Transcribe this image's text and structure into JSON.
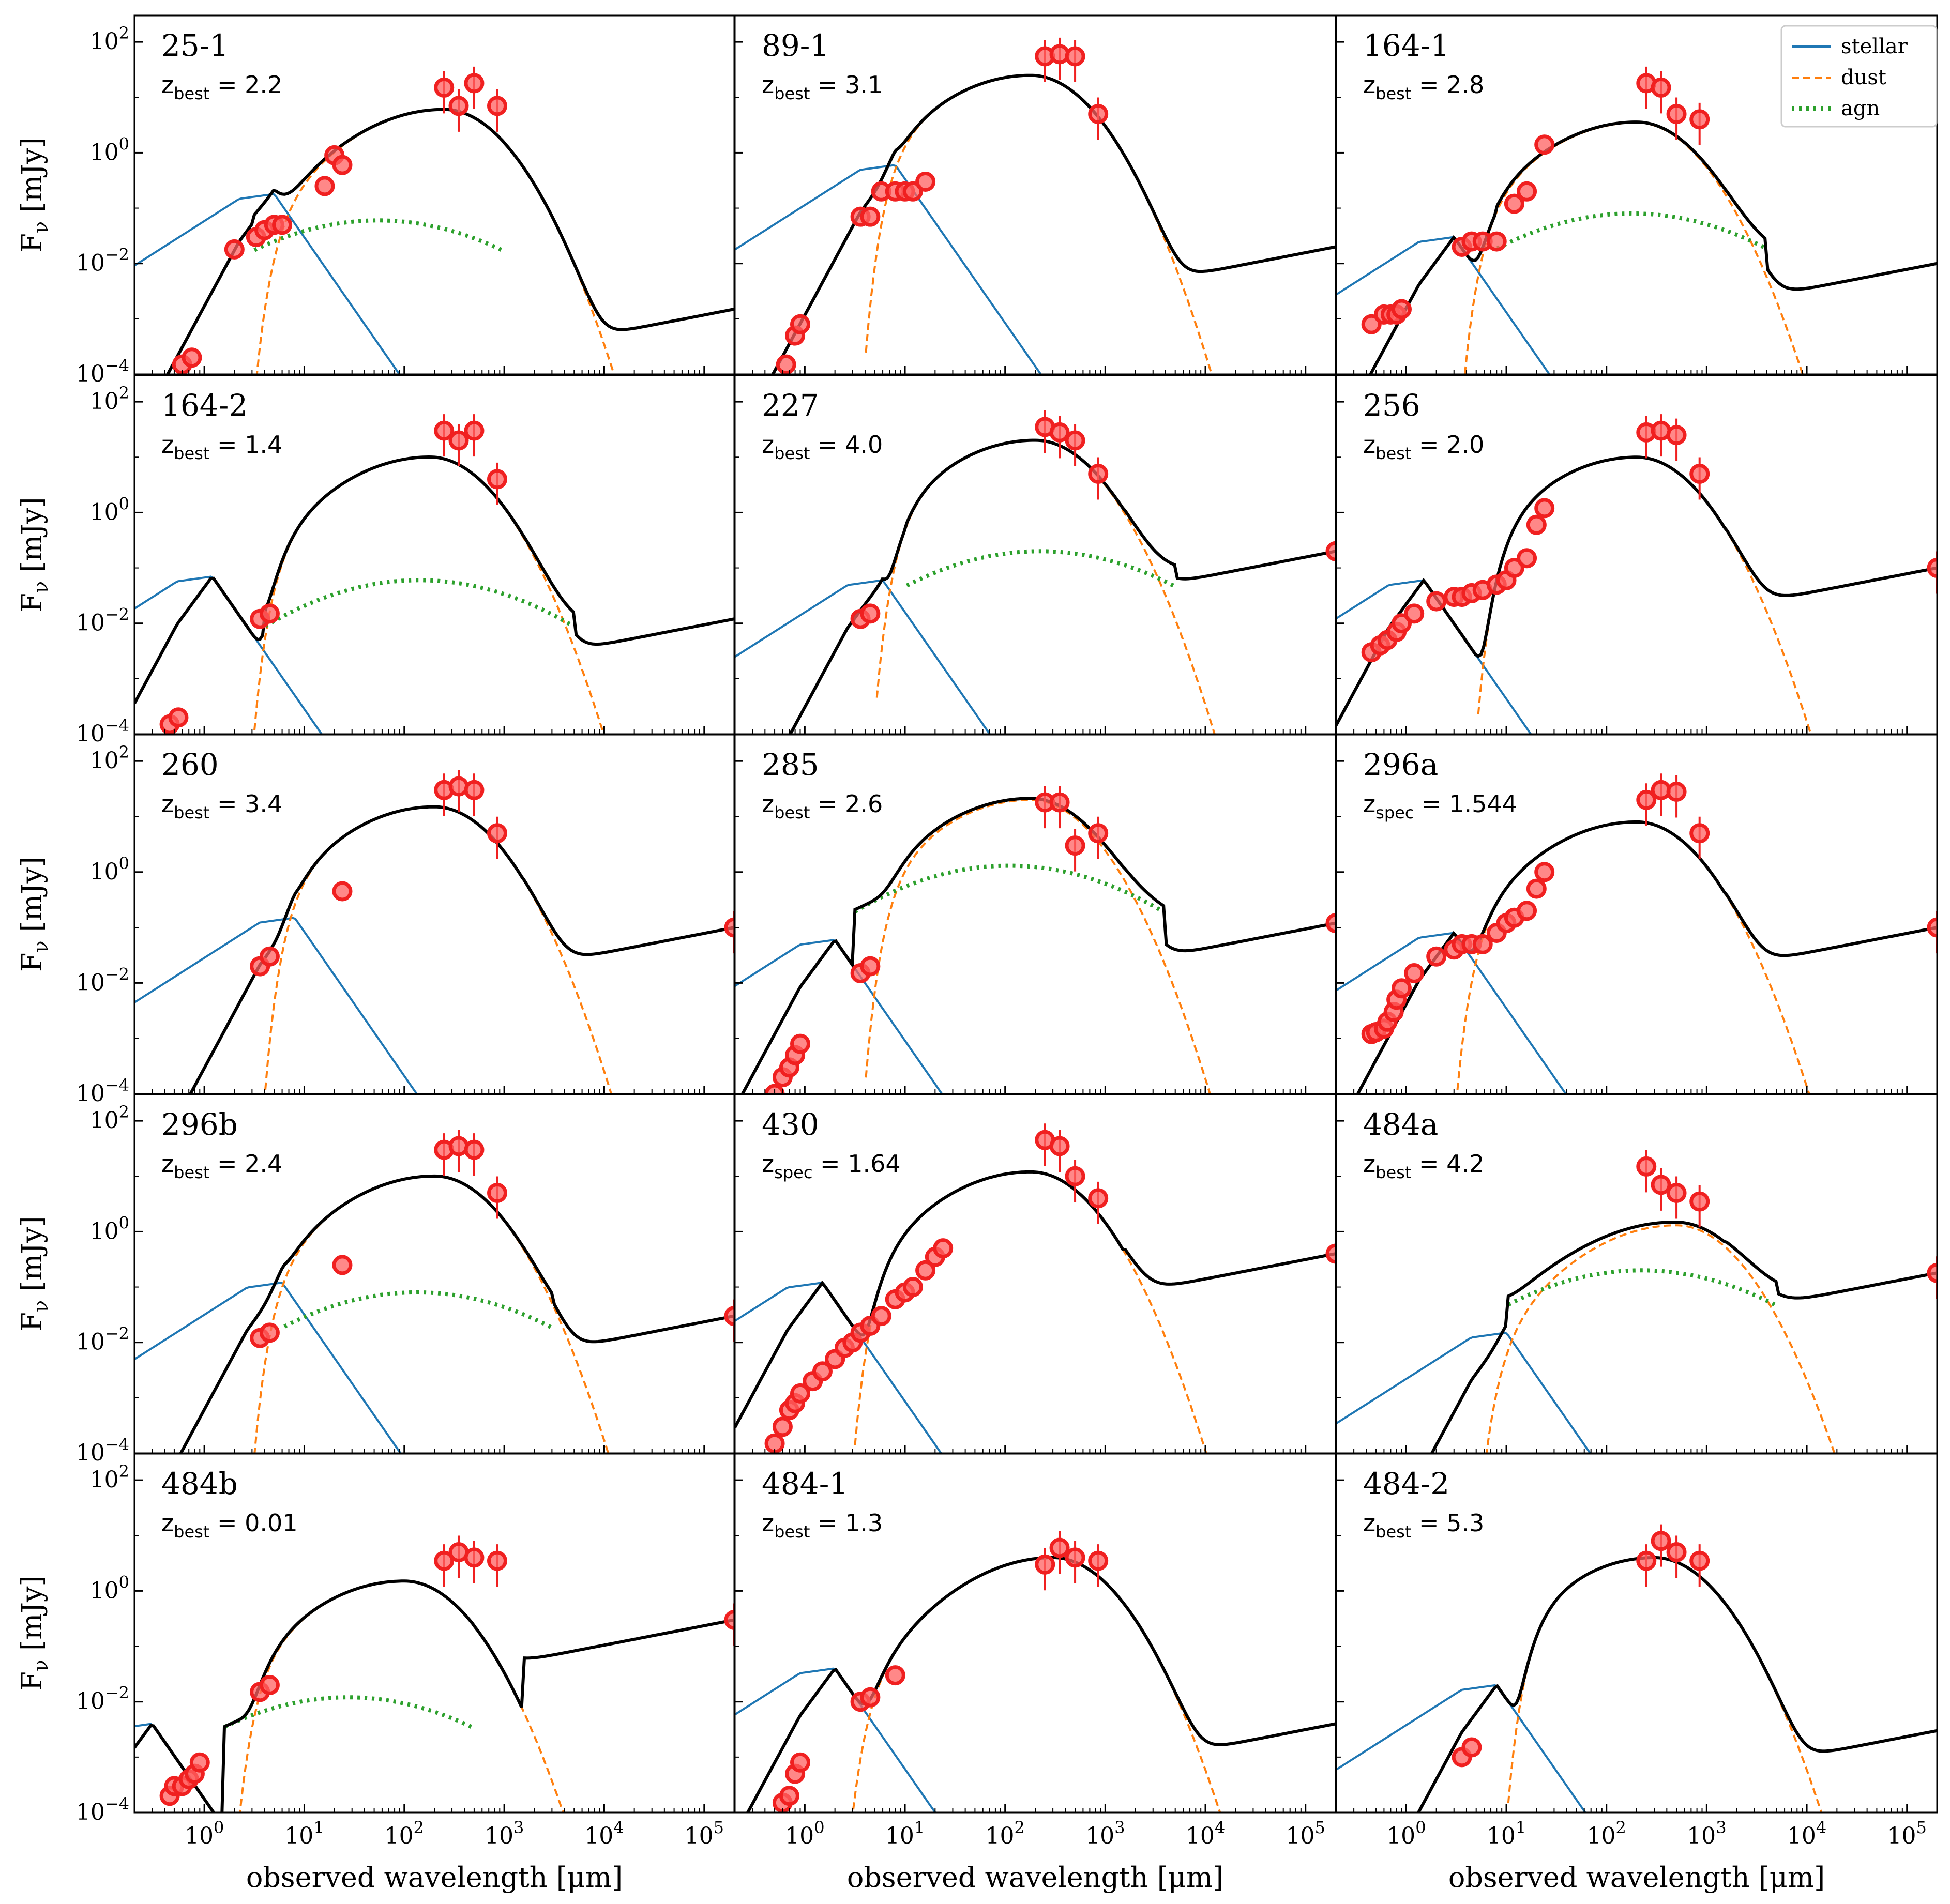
{
  "chart_data": {
    "type": "line",
    "description_axes": {
      "xlabel": "observed wavelength [μm]",
      "ylabel": "F_ν [mJy]",
      "xscale": "log",
      "yscale": "log",
      "xlim": [
        0.2,
        200000
      ],
      "ylim": [
        0.0001,
        300
      ],
      "x_ticks": [
        "10^0",
        "10^1",
        "10^2",
        "10^3",
        "10^4",
        "10^5"
      ],
      "y_ticks": [
        "10^-4",
        "10^-2",
        "10^0",
        "10^2"
      ]
    },
    "legend": {
      "location": "top-right of top-right panel",
      "entries": [
        {
          "label": "stellar",
          "color": "#1f77b4",
          "style": "solid"
        },
        {
          "label": "dust",
          "color": "#ff7f0e",
          "style": "dashed"
        },
        {
          "label": "agn",
          "color": "#2ca02c",
          "style": "dotted"
        }
      ]
    },
    "colors": {
      "total": "#000000",
      "stellar": "#1f77b4",
      "dust": "#ff7f0e",
      "agn": "#2ca02c",
      "data": "#f02020"
    },
    "panels": [
      {
        "id": "25-1",
        "zkind": "best",
        "z": "2.2",
        "stellar": {
          "peak_x": 5,
          "peak_y": 0.18
        },
        "dust": {
          "start_x": 3,
          "peak_x": 250,
          "peak_y": 6
        },
        "agn": {
          "start_x": 3,
          "end_x": 1000,
          "level": 0.06
        },
        "tail_y": 0.0015,
        "points": [
          [
            0.6,
            0.00015
          ],
          [
            0.75,
            0.0002
          ],
          [
            2,
            0.018
          ],
          [
            3.3,
            0.03
          ],
          [
            4,
            0.04
          ],
          [
            5,
            0.05
          ],
          [
            6,
            0.05
          ],
          [
            16,
            0.25
          ],
          [
            20,
            0.9
          ],
          [
            24,
            0.6
          ],
          [
            250,
            15
          ],
          [
            350,
            7
          ],
          [
            500,
            18
          ],
          [
            850,
            7
          ]
        ]
      },
      {
        "id": "89-1",
        "zkind": "best",
        "z": "3.1",
        "stellar": {
          "peak_x": 8,
          "peak_y": 0.6
        },
        "dust": {
          "start_x": 4,
          "peak_x": 180,
          "peak_y": 25
        },
        "agn": null,
        "tail_y": 0.02,
        "points": [
          [
            0.65,
            0.00015
          ],
          [
            0.8,
            0.0005
          ],
          [
            0.9,
            0.0008
          ],
          [
            3.6,
            0.07
          ],
          [
            4.5,
            0.07
          ],
          [
            5.8,
            0.2
          ],
          [
            8,
            0.2
          ],
          [
            10,
            0.2
          ],
          [
            12,
            0.2
          ],
          [
            16,
            0.3
          ],
          [
            250,
            55
          ],
          [
            350,
            60
          ],
          [
            500,
            55
          ],
          [
            850,
            5
          ]
        ]
      },
      {
        "id": "164-1",
        "zkind": "best",
        "z": "2.8",
        "stellar": {
          "peak_x": 3,
          "peak_y": 0.03
        },
        "dust": {
          "start_x": 3.5,
          "peak_x": 200,
          "peak_y": 3.5
        },
        "agn": {
          "start_x": 8,
          "end_x": 4000,
          "level": 0.08
        },
        "tail_y": 0.01,
        "points": [
          [
            0.45,
            0.0008
          ],
          [
            0.6,
            0.0012
          ],
          [
            0.7,
            0.0012
          ],
          [
            0.8,
            0.0012
          ],
          [
            0.9,
            0.0015
          ],
          [
            3.6,
            0.02
          ],
          [
            4.5,
            0.025
          ],
          [
            5.8,
            0.025
          ],
          [
            8,
            0.025
          ],
          [
            12,
            0.12
          ],
          [
            16,
            0.2
          ],
          [
            24,
            1.4
          ],
          [
            250,
            18
          ],
          [
            350,
            15
          ],
          [
            500,
            5
          ],
          [
            850,
            4
          ]
        ]
      },
      {
        "id": "164-2",
        "zkind": "best",
        "z": "1.4",
        "stellar": {
          "peak_x": 1.2,
          "peak_y": 0.07
        },
        "dust": {
          "start_x": 3,
          "peak_x": 180,
          "peak_y": 10
        },
        "agn": {
          "start_x": 4,
          "end_x": 5000,
          "level": 0.06
        },
        "tail_y": 0.012,
        "points": [
          [
            0.45,
            0.00015
          ],
          [
            0.55,
            0.0002
          ],
          [
            3.6,
            0.012
          ],
          [
            4.5,
            0.015
          ],
          [
            250,
            30
          ],
          [
            350,
            20
          ],
          [
            500,
            30
          ],
          [
            850,
            4
          ]
        ]
      },
      {
        "id": "227",
        "zkind": "best",
        "z": "4.0",
        "stellar": {
          "peak_x": 6,
          "peak_y": 0.06
        },
        "dust": {
          "start_x": 5,
          "peak_x": 200,
          "peak_y": 20
        },
        "agn": {
          "start_x": 10,
          "end_x": 5000,
          "level": 0.2
        },
        "tail_y": 0.2,
        "points": [
          [
            3.6,
            0.012
          ],
          [
            4.5,
            0.015
          ],
          [
            250,
            35
          ],
          [
            350,
            28
          ],
          [
            500,
            20
          ],
          [
            850,
            5
          ],
          [
            200000,
            0.2
          ]
        ]
      },
      {
        "id": "256",
        "zkind": "best",
        "z": "2.0",
        "stellar": {
          "peak_x": 1.5,
          "peak_y": 0.06
        },
        "dust": {
          "start_x": 5,
          "peak_x": 200,
          "peak_y": 10
        },
        "agn": null,
        "tail_y": 0.1,
        "points": [
          [
            0.45,
            0.003
          ],
          [
            0.55,
            0.004
          ],
          [
            0.65,
            0.005
          ],
          [
            0.8,
            0.007
          ],
          [
            0.9,
            0.01
          ],
          [
            1.2,
            0.015
          ],
          [
            2,
            0.025
          ],
          [
            3,
            0.03
          ],
          [
            3.6,
            0.03
          ],
          [
            4.5,
            0.035
          ],
          [
            5.8,
            0.04
          ],
          [
            8,
            0.05
          ],
          [
            10,
            0.06
          ],
          [
            12,
            0.1
          ],
          [
            16,
            0.15
          ],
          [
            20,
            0.6
          ],
          [
            24,
            1.2
          ],
          [
            250,
            28
          ],
          [
            350,
            30
          ],
          [
            500,
            25
          ],
          [
            850,
            5
          ],
          [
            200000,
            0.1
          ]
        ]
      },
      {
        "id": "260",
        "zkind": "best",
        "z": "3.4",
        "stellar": {
          "peak_x": 8,
          "peak_y": 0.15
        },
        "dust": {
          "start_x": 4,
          "peak_x": 200,
          "peak_y": 15
        },
        "agn": null,
        "tail_y": 0.1,
        "points": [
          [
            3.6,
            0.02
          ],
          [
            4.5,
            0.03
          ],
          [
            24,
            0.45
          ],
          [
            250,
            30
          ],
          [
            350,
            35
          ],
          [
            500,
            30
          ],
          [
            850,
            5
          ],
          [
            200000,
            0.1
          ]
        ]
      },
      {
        "id": "285",
        "zkind": "best",
        "z": "2.6",
        "stellar": {
          "peak_x": 2,
          "peak_y": 0.06
        },
        "dust": {
          "start_x": 4,
          "peak_x": 180,
          "peak_y": 20
        },
        "agn": {
          "start_x": 3,
          "end_x": 4000,
          "level": 1.3
        },
        "tail_y": 0.12,
        "points": [
          [
            0.5,
            0.0001
          ],
          [
            0.6,
            0.0002
          ],
          [
            0.7,
            0.0003
          ],
          [
            0.8,
            0.0005
          ],
          [
            0.9,
            0.0008
          ],
          [
            3.6,
            0.015
          ],
          [
            4.5,
            0.02
          ],
          [
            250,
            18
          ],
          [
            350,
            18
          ],
          [
            500,
            3
          ],
          [
            850,
            5
          ],
          [
            200000,
            0.12
          ]
        ]
      },
      {
        "id": "296a",
        "zkind": "spec",
        "z": "1.544",
        "stellar": {
          "peak_x": 3,
          "peak_y": 0.08
        },
        "dust": {
          "start_x": 3,
          "peak_x": 200,
          "peak_y": 8
        },
        "agn": null,
        "tail_y": 0.1,
        "points": [
          [
            0.45,
            0.0012
          ],
          [
            0.5,
            0.0013
          ],
          [
            0.6,
            0.0015
          ],
          [
            0.65,
            0.002
          ],
          [
            0.75,
            0.003
          ],
          [
            0.8,
            0.005
          ],
          [
            0.9,
            0.008
          ],
          [
            1.2,
            0.015
          ],
          [
            2,
            0.03
          ],
          [
            3,
            0.04
          ],
          [
            3.6,
            0.05
          ],
          [
            4.5,
            0.05
          ],
          [
            5.8,
            0.05
          ],
          [
            8,
            0.08
          ],
          [
            10,
            0.12
          ],
          [
            12,
            0.15
          ],
          [
            16,
            0.2
          ],
          [
            20,
            0.5
          ],
          [
            24,
            1
          ],
          [
            250,
            20
          ],
          [
            350,
            30
          ],
          [
            500,
            28
          ],
          [
            850,
            5
          ],
          [
            200000,
            0.1
          ]
        ]
      },
      {
        "id": "296b",
        "zkind": "best",
        "z": "2.4",
        "stellar": {
          "peak_x": 6,
          "peak_y": 0.12
        },
        "dust": {
          "start_x": 3,
          "peak_x": 200,
          "peak_y": 10
        },
        "agn": {
          "start_x": 6,
          "end_x": 3000,
          "level": 0.08
        },
        "tail_y": 0.03,
        "points": [
          [
            3.6,
            0.012
          ],
          [
            4.5,
            0.015
          ],
          [
            24,
            0.25
          ],
          [
            250,
            30
          ],
          [
            350,
            35
          ],
          [
            500,
            30
          ],
          [
            850,
            5
          ],
          [
            200000,
            0.03
          ]
        ]
      },
      {
        "id": "430",
        "zkind": "spec",
        "z": "1.64",
        "stellar": {
          "peak_x": 1.5,
          "peak_y": 0.12
        },
        "dust": {
          "start_x": 3,
          "peak_x": 180,
          "peak_y": 12
        },
        "agn": null,
        "tail_y": 0.4,
        "points": [
          [
            0.5,
            0.00015
          ],
          [
            0.6,
            0.0003
          ],
          [
            0.7,
            0.0006
          ],
          [
            0.8,
            0.0008
          ],
          [
            0.9,
            0.0012
          ],
          [
            1.2,
            0.002
          ],
          [
            1.5,
            0.003
          ],
          [
            2,
            0.005
          ],
          [
            2.5,
            0.008
          ],
          [
            3,
            0.01
          ],
          [
            3.6,
            0.015
          ],
          [
            4.5,
            0.02
          ],
          [
            5.8,
            0.03
          ],
          [
            8,
            0.06
          ],
          [
            10,
            0.08
          ],
          [
            12,
            0.1
          ],
          [
            16,
            0.2
          ],
          [
            20,
            0.35
          ],
          [
            24,
            0.5
          ],
          [
            250,
            45
          ],
          [
            350,
            35
          ],
          [
            500,
            10
          ],
          [
            850,
            4
          ],
          [
            200000,
            0.4
          ]
        ]
      },
      {
        "id": "484a",
        "zkind": "best",
        "z": "4.2",
        "stellar": {
          "peak_x": 10,
          "peak_y": 0.015
        },
        "dust": {
          "start_x": 5,
          "peak_x": 500,
          "peak_y": 1.3
        },
        "agn": {
          "start_x": 10,
          "end_x": 5000,
          "level": 0.2
        },
        "tail_y": 0.18,
        "points": [
          [
            250,
            15
          ],
          [
            350,
            7
          ],
          [
            500,
            5
          ],
          [
            850,
            3.5
          ],
          [
            200000,
            0.18
          ]
        ]
      },
      {
        "id": "484b",
        "zkind": "best",
        "z": "0.01",
        "stellar": {
          "peak_x": 0.3,
          "peak_y": 0.004
        },
        "dust": {
          "start_x": 2,
          "peak_x": 100,
          "peak_y": 1.5
        },
        "agn": {
          "start_x": 1.5,
          "end_x": 500,
          "level": 0.012
        },
        "tail_y": 0.3,
        "points": [
          [
            0.45,
            0.0002
          ],
          [
            0.5,
            0.0003
          ],
          [
            0.6,
            0.0003
          ],
          [
            0.7,
            0.0004
          ],
          [
            0.8,
            0.0005
          ],
          [
            0.9,
            0.0008
          ],
          [
            3.6,
            0.015
          ],
          [
            4.5,
            0.02
          ],
          [
            250,
            3.5
          ],
          [
            350,
            5
          ],
          [
            500,
            4
          ],
          [
            850,
            3.5
          ],
          [
            200000,
            0.3
          ]
        ]
      },
      {
        "id": "484-1",
        "zkind": "best",
        "z": "1.3",
        "stellar": {
          "peak_x": 2,
          "peak_y": 0.04
        },
        "dust": {
          "start_x": 2.5,
          "peak_x": 300,
          "peak_y": 4
        },
        "agn": null,
        "tail_y": 0.004,
        "points": [
          [
            0.6,
            0.00015
          ],
          [
            0.7,
            0.0002
          ],
          [
            0.8,
            0.0005
          ],
          [
            0.9,
            0.0008
          ],
          [
            3.6,
            0.01
          ],
          [
            4.5,
            0.012
          ],
          [
            8,
            0.03
          ],
          [
            250,
            3
          ],
          [
            350,
            6
          ],
          [
            500,
            4
          ],
          [
            850,
            3.5
          ]
        ]
      },
      {
        "id": "484-2",
        "zkind": "best",
        "z": "5.3",
        "stellar": {
          "peak_x": 8,
          "peak_y": 0.02
        },
        "dust": {
          "start_x": 10,
          "peak_x": 300,
          "peak_y": 4
        },
        "agn": null,
        "tail_y": 0.003,
        "points": [
          [
            3.6,
            0.001
          ],
          [
            4.5,
            0.0015
          ],
          [
            250,
            3.5
          ],
          [
            350,
            8
          ],
          [
            500,
            5
          ],
          [
            850,
            3.5
          ]
        ]
      }
    ]
  }
}
